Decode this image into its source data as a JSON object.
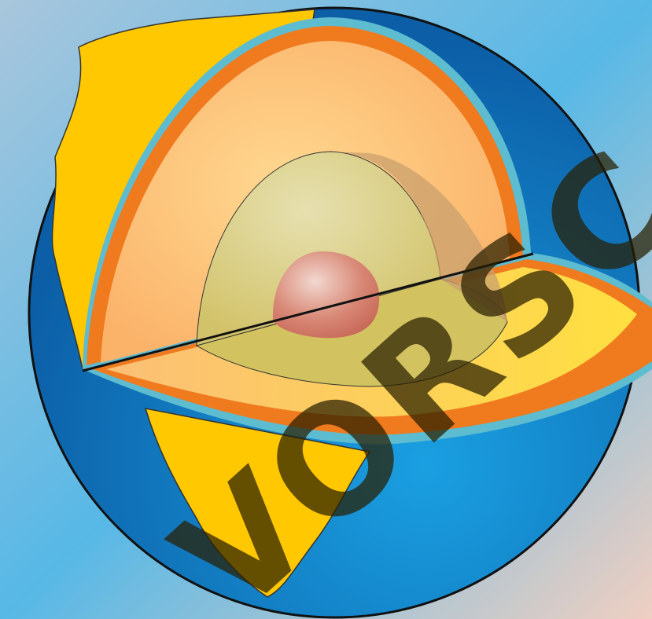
{
  "watermark": "VORSC"
}
